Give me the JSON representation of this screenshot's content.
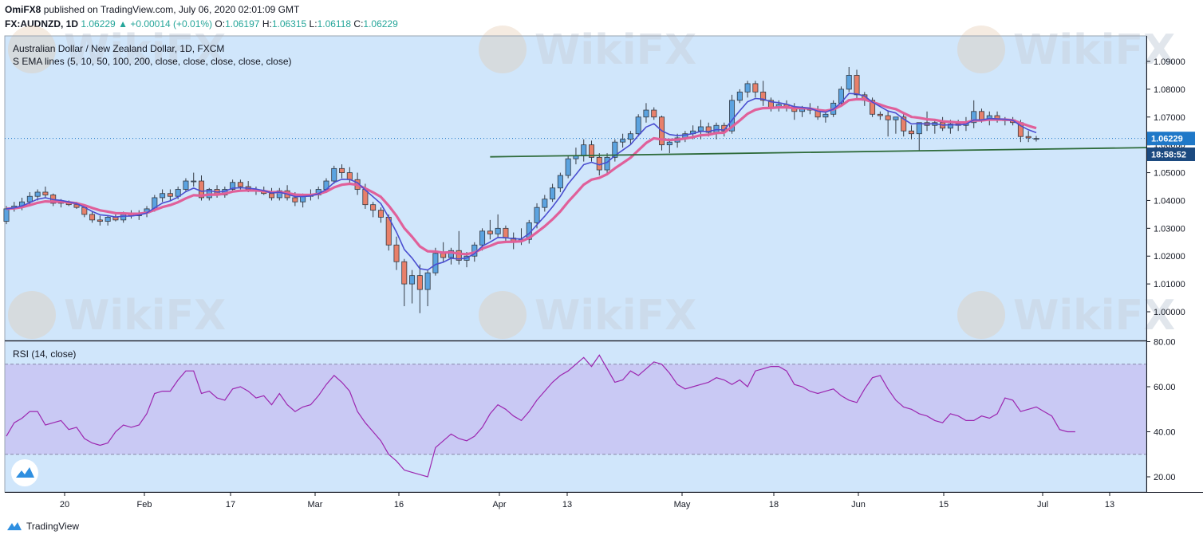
{
  "header": {
    "author": "OmiFX8",
    "published": "published on TradingView.com, July 06, 2020 02:01:09 GMT",
    "symbol": "FX:AUDNZD, 1D",
    "last": "1.06229",
    "arrow": "▲",
    "change": "+0.00014 (+0.01%)",
    "o_label": "O:",
    "o_value": "1.06197",
    "h_label": "H:",
    "h_value": "1.06315",
    "l_label": "L:",
    "l_value": "1.06118",
    "c_label": "C:",
    "c_value": "1.06229"
  },
  "legend": {
    "title": "Australian Dollar / New Zealand Dollar, 1D, FXCM",
    "indicator": "S EMA lines (5, 10, 50, 100, 200, close, close, close, close, close)",
    "rsi": "RSI (14, close)"
  },
  "price_badges": {
    "last_price": "1.06229",
    "countdown": "18:58:52"
  },
  "footer": {
    "brand": "TradingView"
  },
  "watermark": "WikiFX",
  "colors": {
    "up": "#5ba3e0",
    "down": "#e8806a",
    "ema_fast": "#4a4ed0",
    "ema_slow": "#e0609a",
    "trendline": "#2e6b3a",
    "rsi_line": "#9c27b0",
    "rsi_band": "#c9c9f4",
    "background": "#d0e6fb",
    "badge_price": "#1f78c8",
    "badge_countdown": "#1c4a80"
  },
  "chart_data": [
    {
      "type": "candlestick",
      "title": "Australian Dollar / New Zealand Dollar, 1D, FXCM",
      "x_ticks": [
        "20",
        "Feb",
        "17",
        "Mar",
        "16",
        "Apr",
        "13",
        "May",
        "18",
        "Jun",
        "15",
        "Jul",
        "13"
      ],
      "y_ticks": [
        "1.00000",
        "1.01000",
        "1.02000",
        "1.03000",
        "1.04000",
        "1.05000",
        "1.06000",
        "1.07000",
        "1.08000",
        "1.09000"
      ],
      "ylim": [
        0.995,
        1.0915
      ],
      "series": [
        {
          "name": "OHLC",
          "values": [
            [
              1.0325,
              1.038,
              1.0315,
              1.037
            ],
            [
              1.037,
              1.0395,
              1.036,
              1.038
            ],
            [
              1.038,
              1.041,
              1.0365,
              1.0395
            ],
            [
              1.0395,
              1.043,
              1.038,
              1.0415
            ],
            [
              1.0415,
              1.044,
              1.04,
              1.043
            ],
            [
              1.043,
              1.045,
              1.041,
              1.042
            ],
            [
              1.042,
              1.0425,
              1.038,
              1.039
            ],
            [
              1.039,
              1.0405,
              1.0375,
              1.0395
            ],
            [
              1.0395,
              1.04,
              1.038,
              1.0385
            ],
            [
              1.0385,
              1.0395,
              1.037,
              1.0375
            ],
            [
              1.0375,
              1.038,
              1.034,
              1.035
            ],
            [
              1.035,
              1.036,
              1.032,
              1.033
            ],
            [
              1.033,
              1.0345,
              1.031,
              1.0325
            ],
            [
              1.0325,
              1.0345,
              1.031,
              1.034
            ],
            [
              1.034,
              1.035,
              1.0325,
              1.033
            ],
            [
              1.033,
              1.036,
              1.032,
              1.035
            ],
            [
              1.035,
              1.0365,
              1.0335,
              1.0345
            ],
            [
              1.0345,
              1.0365,
              1.033,
              1.0355
            ],
            [
              1.0355,
              1.038,
              1.034,
              1.037
            ],
            [
              1.037,
              1.042,
              1.036,
              1.041
            ],
            [
              1.041,
              1.044,
              1.0395,
              1.0425
            ],
            [
              1.0425,
              1.044,
              1.04,
              1.0415
            ],
            [
              1.0415,
              1.045,
              1.0405,
              1.044
            ],
            [
              1.044,
              1.048,
              1.043,
              1.047
            ],
            [
              1.047,
              1.05,
              1.045,
              1.047
            ],
            [
              1.047,
              1.049,
              1.04,
              1.041
            ],
            [
              1.041,
              1.0445,
              1.04,
              1.044
            ],
            [
              1.044,
              1.0455,
              1.041,
              1.042
            ],
            [
              1.042,
              1.045,
              1.041,
              1.044
            ],
            [
              1.044,
              1.0475,
              1.043,
              1.0465
            ],
            [
              1.0465,
              1.0475,
              1.044,
              1.045
            ],
            [
              1.045,
              1.047,
              1.043,
              1.044
            ],
            [
              1.044,
              1.045,
              1.042,
              1.0435
            ],
            [
              1.0435,
              1.045,
              1.042,
              1.0425
            ],
            [
              1.0425,
              1.0445,
              1.04,
              1.041
            ],
            [
              1.041,
              1.0445,
              1.04,
              1.0435
            ],
            [
              1.0435,
              1.0455,
              1.04,
              1.041
            ],
            [
              1.041,
              1.043,
              1.038,
              1.0395
            ],
            [
              1.0395,
              1.0425,
              1.0375,
              1.0415
            ],
            [
              1.0415,
              1.044,
              1.04,
              1.042
            ],
            [
              1.042,
              1.045,
              1.0405,
              1.044
            ],
            [
              1.044,
              1.048,
              1.043,
              1.047
            ],
            [
              1.047,
              1.0525,
              1.046,
              1.0515
            ],
            [
              1.0515,
              1.053,
              1.048,
              1.05
            ],
            [
              1.05,
              1.052,
              1.046,
              1.0475
            ],
            [
              1.0475,
              1.05,
              1.042,
              1.044
            ],
            [
              1.044,
              1.046,
              1.037,
              1.0385
            ],
            [
              1.0385,
              1.0395,
              1.034,
              1.0365
            ],
            [
              1.0365,
              1.0375,
              1.032,
              1.034
            ],
            [
              1.034,
              1.035,
              1.022,
              1.024
            ],
            [
              1.024,
              1.027,
              1.015,
              1.018
            ],
            [
              1.018,
              1.019,
              1.002,
              1.01
            ],
            [
              1.01,
              1.015,
              1.003,
              1.013
            ],
            [
              1.013,
              1.017,
              0.9995,
              1.008
            ],
            [
              1.008,
              1.015,
              1.002,
              1.014
            ],
            [
              1.014,
              1.023,
              1.013,
              1.021
            ],
            [
              1.021,
              1.025,
              1.018,
              1.0195
            ],
            [
              1.0195,
              1.023,
              1.017,
              1.022
            ],
            [
              1.022,
              1.029,
              1.017,
              1.0185
            ],
            [
              1.0185,
              1.0215,
              1.016,
              1.02
            ],
            [
              1.02,
              1.025,
              1.018,
              1.024
            ],
            [
              1.024,
              1.03,
              1.022,
              1.029
            ],
            [
              1.029,
              1.033,
              1.026,
              1.028
            ],
            [
              1.028,
              1.035,
              1.0265,
              1.03
            ],
            [
              1.03,
              1.031,
              1.025,
              1.0265
            ],
            [
              1.0265,
              1.0285,
              1.0225,
              1.0255
            ],
            [
              1.0255,
              1.03,
              1.024,
              1.026
            ],
            [
              1.026,
              1.033,
              1.0245,
              1.032
            ],
            [
              1.032,
              1.039,
              1.03,
              1.0375
            ],
            [
              1.0375,
              1.042,
              1.036,
              1.0405
            ],
            [
              1.0405,
              1.046,
              1.0395,
              1.0445
            ],
            [
              1.0445,
              1.05,
              1.043,
              1.049
            ],
            [
              1.049,
              1.056,
              1.048,
              1.055
            ],
            [
              1.055,
              1.059,
              1.053,
              1.056
            ],
            [
              1.056,
              1.062,
              1.054,
              1.06
            ],
            [
              1.06,
              1.0615,
              1.054,
              1.0555
            ],
            [
              1.0555,
              1.057,
              1.049,
              1.051
            ],
            [
              1.051,
              1.057,
              1.049,
              1.0555
            ],
            [
              1.0555,
              1.062,
              1.054,
              1.061
            ],
            [
              1.061,
              1.064,
              1.059,
              1.062
            ],
            [
              1.062,
              1.065,
              1.06,
              1.064
            ],
            [
              1.064,
              1.071,
              1.063,
              1.07
            ],
            [
              1.07,
              1.075,
              1.068,
              1.0725
            ],
            [
              1.0725,
              1.0735,
              1.069,
              1.07
            ],
            [
              1.07,
              1.0705,
              1.058,
              1.06
            ],
            [
              1.06,
              1.062,
              1.057,
              1.061
            ],
            [
              1.061,
              1.064,
              1.059,
              1.0625
            ],
            [
              1.0625,
              1.065,
              1.061,
              1.064
            ],
            [
              1.064,
              1.067,
              1.062,
              1.065
            ],
            [
              1.065,
              1.069,
              1.062,
              1.0665
            ],
            [
              1.0665,
              1.068,
              1.063,
              1.0645
            ],
            [
              1.0645,
              1.068,
              1.062,
              1.067
            ],
            [
              1.067,
              1.068,
              1.063,
              1.065
            ],
            [
              1.065,
              1.078,
              1.064,
              1.076
            ],
            [
              1.076,
              1.08,
              1.075,
              1.079
            ],
            [
              1.079,
              1.083,
              1.077,
              1.082
            ],
            [
              1.082,
              1.083,
              1.077,
              1.079
            ],
            [
              1.079,
              1.083,
              1.074,
              1.076
            ],
            [
              1.076,
              1.077,
              1.072,
              1.0735
            ],
            [
              1.0735,
              1.076,
              1.072,
              1.0745
            ],
            [
              1.0745,
              1.076,
              1.072,
              1.0735
            ],
            [
              1.0735,
              1.075,
              1.069,
              1.072
            ],
            [
              1.072,
              1.074,
              1.07,
              1.073
            ],
            [
              1.073,
              1.075,
              1.071,
              1.0725
            ],
            [
              1.0725,
              1.074,
              1.069,
              1.07
            ],
            [
              1.07,
              1.072,
              1.068,
              1.071
            ],
            [
              1.071,
              1.076,
              1.07,
              1.075
            ],
            [
              1.075,
              1.081,
              1.074,
              1.08
            ],
            [
              1.08,
              1.088,
              1.079,
              1.085
            ],
            [
              1.085,
              1.087,
              1.076,
              1.078
            ],
            [
              1.078,
              1.079,
              1.074,
              1.076
            ],
            [
              1.076,
              1.077,
              1.07,
              1.071
            ],
            [
              1.071,
              1.072,
              1.069,
              1.0705
            ],
            [
              1.0705,
              1.072,
              1.063,
              1.069
            ],
            [
              1.069,
              1.07,
              1.064,
              1.07
            ],
            [
              1.07,
              1.071,
              1.063,
              1.065
            ],
            [
              1.065,
              1.067,
              1.062,
              1.064
            ],
            [
              1.064,
              1.068,
              1.058,
              1.068
            ],
            [
              1.068,
              1.072,
              1.065,
              1.067
            ],
            [
              1.067,
              1.069,
              1.064,
              1.068
            ],
            [
              1.068,
              1.07,
              1.065,
              1.066
            ],
            [
              1.066,
              1.069,
              1.064,
              1.0675
            ],
            [
              1.0675,
              1.069,
              1.065,
              1.067
            ],
            [
              1.067,
              1.07,
              1.065,
              1.068
            ],
            [
              1.068,
              1.076,
              1.066,
              1.072
            ],
            [
              1.072,
              1.073,
              1.068,
              1.069
            ],
            [
              1.069,
              1.072,
              1.067,
              1.0705
            ],
            [
              1.0705,
              1.072,
              1.068,
              1.069
            ],
            [
              1.069,
              1.07,
              1.067,
              1.069
            ],
            [
              1.069,
              1.07,
              1.067,
              1.068
            ],
            [
              1.068,
              1.069,
              1.061,
              1.063
            ],
            [
              1.063,
              1.065,
              1.061,
              1.0625
            ],
            [
              1.062,
              1.0632,
              1.0612,
              1.0623
            ]
          ]
        },
        {
          "name": "EMA 5",
          "color": "#4a4ed0"
        },
        {
          "name": "EMA 10",
          "color": "#e0609a"
        }
      ],
      "annotations": [
        {
          "type": "trendline",
          "from": [
            62,
            1.0557
          ],
          "to": [
            141,
            1.059
          ]
        }
      ],
      "last_price": 1.06229
    },
    {
      "type": "line",
      "title": "RSI (14, close)",
      "y_ticks": [
        "20.00",
        "40.00",
        "60.00",
        "80.00"
      ],
      "ylim": [
        15,
        80.5
      ],
      "band": [
        30,
        70
      ],
      "series": [
        {
          "name": "RSI",
          "values": [
            38,
            44,
            46,
            49,
            49,
            43,
            44,
            45,
            41,
            42,
            37,
            35,
            34,
            35,
            40,
            43,
            42,
            43,
            48,
            57,
            58,
            58,
            63,
            67,
            67,
            57,
            58,
            55,
            54,
            59,
            60,
            58,
            55,
            56,
            52,
            57,
            52,
            49,
            51,
            52,
            56,
            61,
            65,
            62,
            58,
            49,
            44,
            40,
            36,
            30,
            27,
            23,
            22,
            21,
            20,
            33,
            36,
            39,
            37,
            36,
            38,
            42,
            48,
            52,
            50,
            47,
            45,
            49,
            54,
            58,
            62,
            65,
            67,
            70,
            73,
            69,
            74,
            68,
            62,
            63,
            67,
            65,
            68,
            71,
            70,
            66,
            61,
            59,
            60,
            61,
            62,
            64,
            63,
            61,
            63,
            60,
            67,
            68,
            69,
            69,
            67,
            61,
            60,
            58,
            57,
            58,
            59,
            56,
            54,
            53,
            59,
            64,
            65,
            59,
            54,
            51,
            50,
            48,
            47,
            45,
            44,
            48,
            47,
            45,
            45,
            47,
            46,
            48,
            55,
            54,
            49,
            50,
            51,
            49,
            47,
            41,
            40,
            40
          ]
        }
      ]
    }
  ]
}
